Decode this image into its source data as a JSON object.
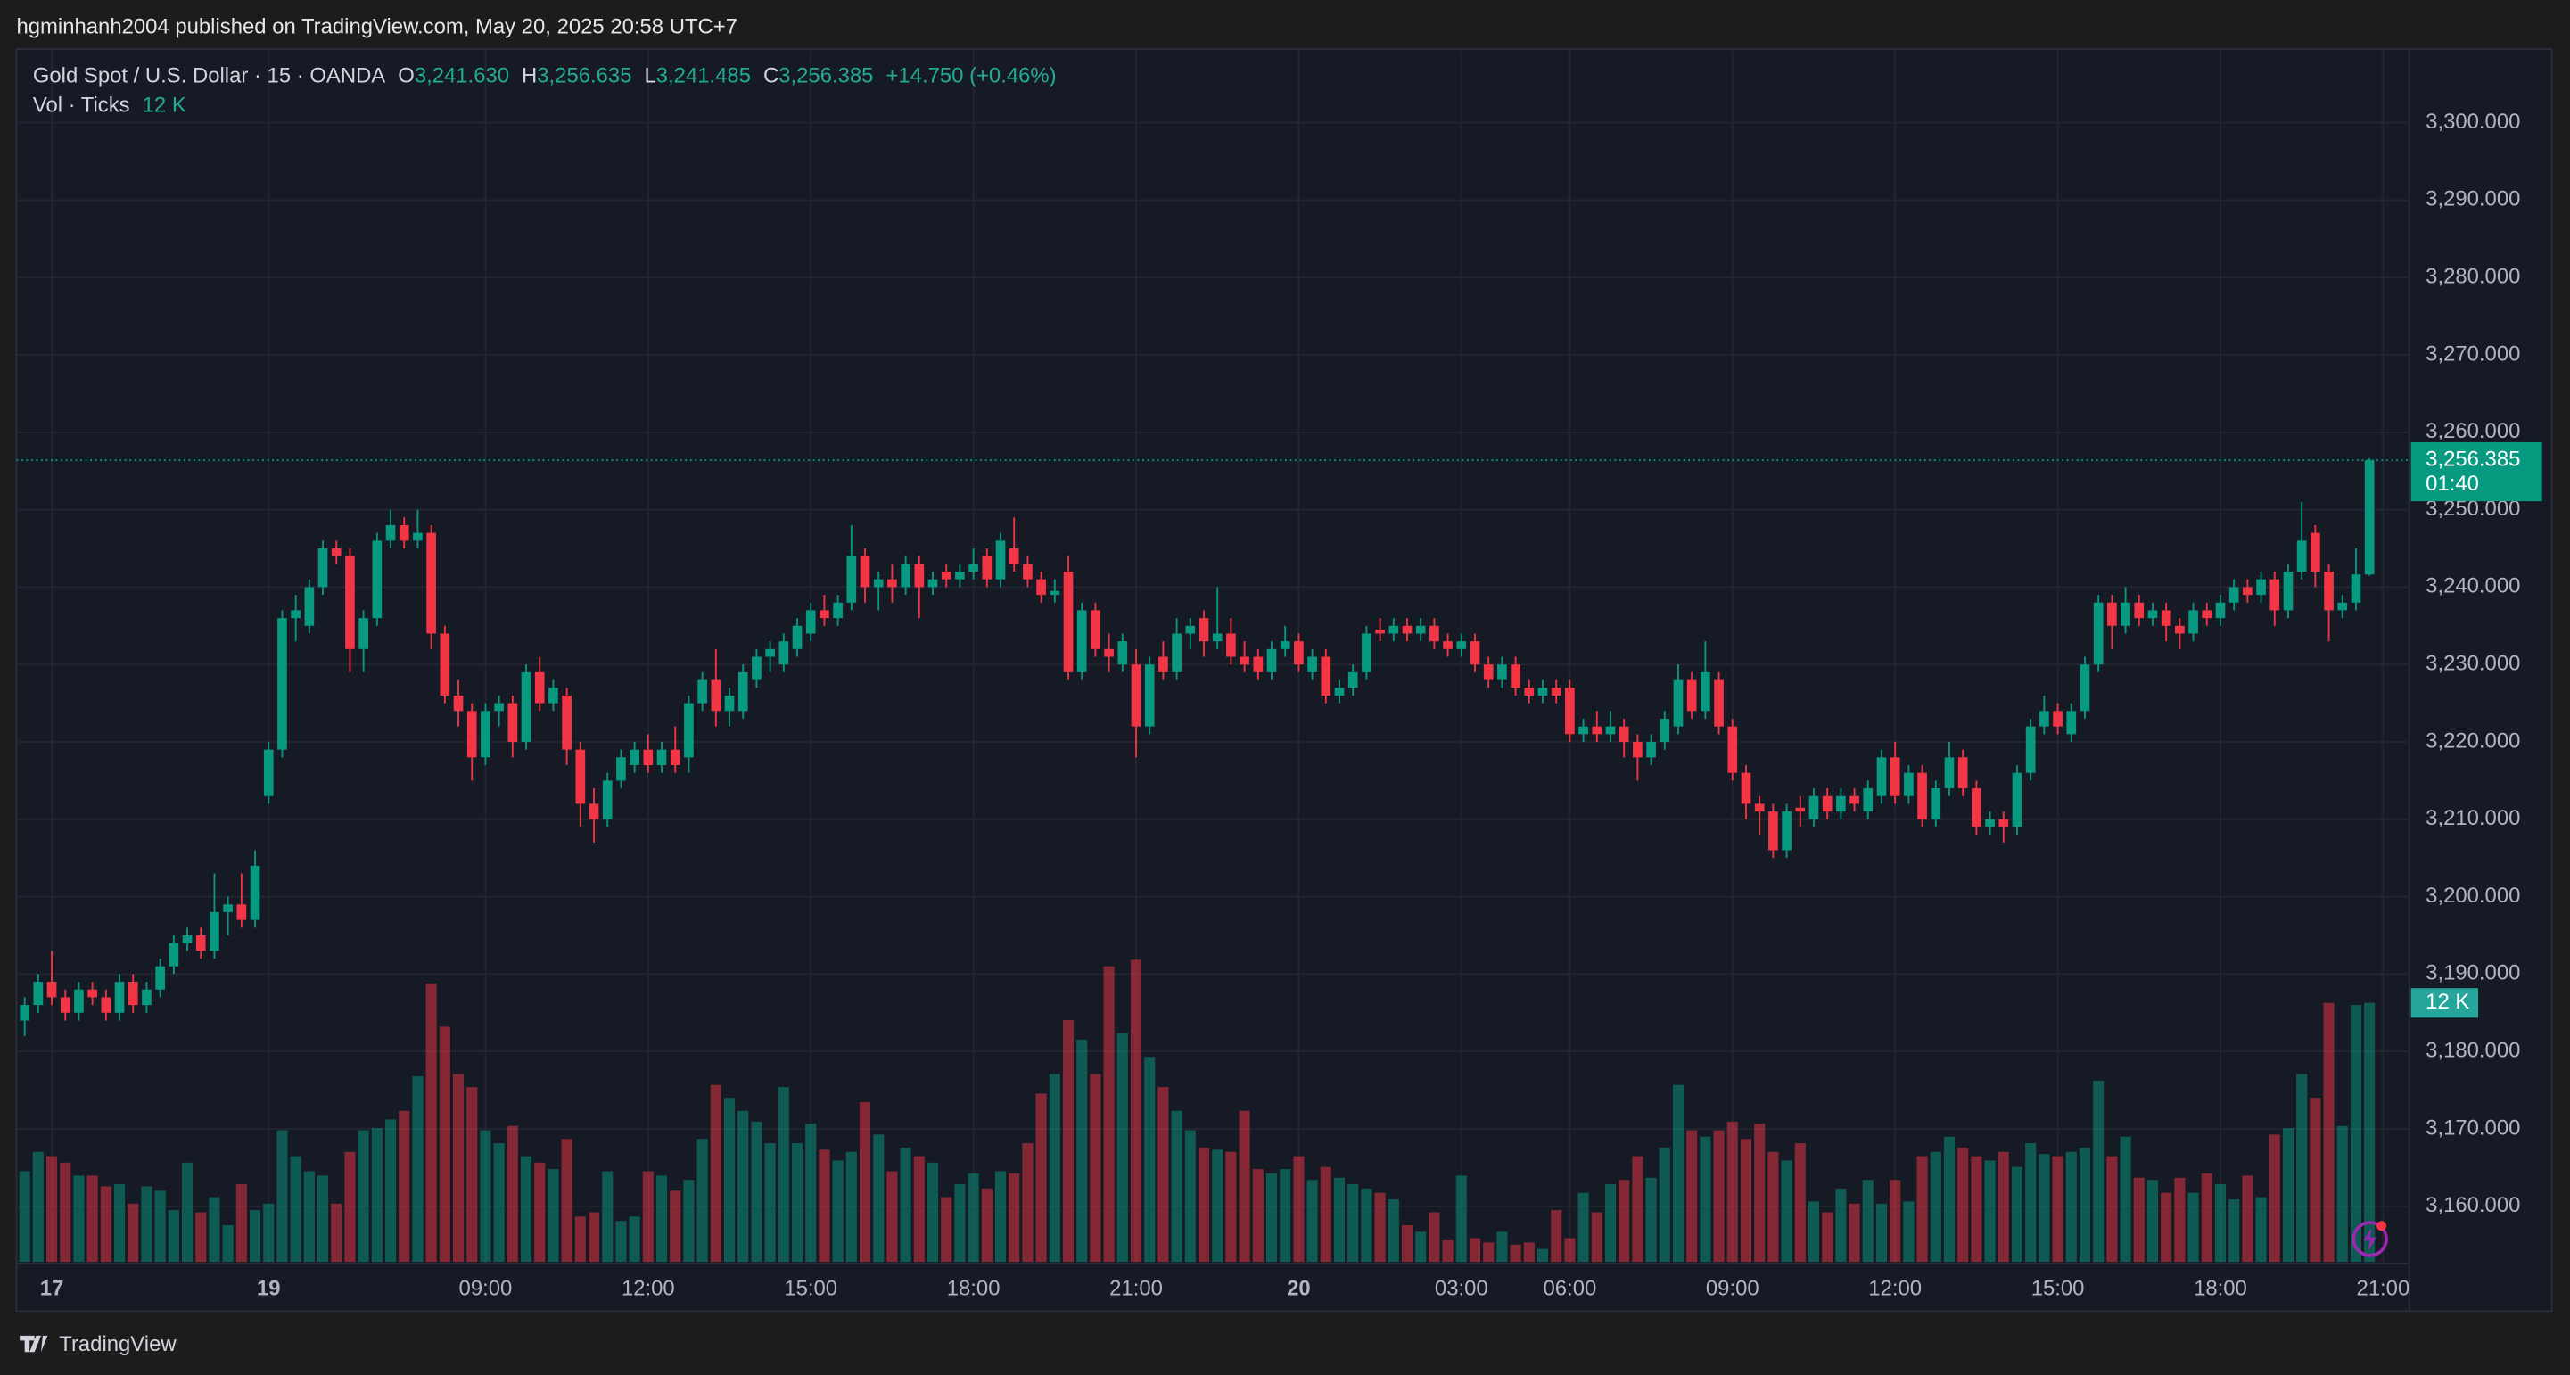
{
  "header": {
    "publisher": "hgminhanh2004 published on TradingView.com, May 20, 2025 20:58 UTC+7"
  },
  "footer": {
    "brand": "TradingView"
  },
  "chart_data": {
    "type": "candlestick",
    "title": "Gold Spot / U.S. Dollar · 15 · OANDA",
    "legend": {
      "o_key": "O",
      "o": "3,241.630",
      "h_key": "H",
      "h": "3,256.635",
      "l_key": "L",
      "l": "3,241.485",
      "c_key": "C",
      "c": "3,256.385",
      "change": "+14.750 (+0.46%)",
      "volume_title": "Vol · Ticks",
      "volume": "12 K"
    },
    "last_price_label": "3,256.385",
    "countdown": "01:40",
    "volume_tag": "12 K",
    "up_color": "#089981",
    "down_color": "#f23645",
    "ylim": [
      3152.6,
      3309.5
    ],
    "yticks": [
      {
        "value": 3160,
        "label": "3,160.000"
      },
      {
        "value": 3170,
        "label": "3,170.000"
      },
      {
        "value": 3180,
        "label": "3,180.000"
      },
      {
        "value": 3190,
        "label": "3,190.000"
      },
      {
        "value": 3200,
        "label": "3,200.000"
      },
      {
        "value": 3210,
        "label": "3,210.000"
      },
      {
        "value": 3220,
        "label": "3,220.000"
      },
      {
        "value": 3230,
        "label": "3,230.000"
      },
      {
        "value": 3240,
        "label": "3,240.000"
      },
      {
        "value": 3250,
        "label": "3,250.000"
      },
      {
        "value": 3260,
        "label": "3,260.000"
      },
      {
        "value": 3270,
        "label": "3,270.000"
      },
      {
        "value": 3280,
        "label": "3,280.000"
      },
      {
        "value": 3290,
        "label": "3,290.000"
      },
      {
        "value": 3300,
        "label": "3,300.000"
      }
    ],
    "xticks": [
      {
        "value": 2,
        "label": "17"
      },
      {
        "value": 18,
        "label": "19"
      },
      {
        "value": 34,
        "label": "09:00"
      },
      {
        "value": 46,
        "label": "12:00"
      },
      {
        "value": 58,
        "label": "15:00"
      },
      {
        "value": 70,
        "label": "18:00"
      },
      {
        "value": 82,
        "label": "21:00"
      },
      {
        "value": 94,
        "label": "20"
      },
      {
        "value": 106,
        "label": "03:00"
      },
      {
        "value": 114,
        "label": "06:00"
      },
      {
        "value": 126,
        "label": "09:00"
      },
      {
        "value": 138,
        "label": "12:00"
      },
      {
        "value": 150,
        "label": "15:00"
      },
      {
        "value": 162,
        "label": "18:00"
      },
      {
        "value": 174,
        "label": "21:00"
      }
    ],
    "grid": true,
    "ohlc": [
      [
        3184,
        3187,
        3182,
        3186
      ],
      [
        3186,
        3190,
        3185,
        3189
      ],
      [
        3189,
        3193,
        3186,
        3187
      ],
      [
        3187,
        3188,
        3184,
        3185
      ],
      [
        3185,
        3189,
        3184,
        3188
      ],
      [
        3188,
        3189,
        3186,
        3187
      ],
      [
        3187,
        3188,
        3184,
        3185
      ],
      [
        3185,
        3190,
        3184,
        3189
      ],
      [
        3189,
        3190,
        3185,
        3186
      ],
      [
        3186,
        3189,
        3185,
        3188
      ],
      [
        3188,
        3192,
        3187,
        3191
      ],
      [
        3191,
        3195,
        3190,
        3194
      ],
      [
        3194,
        3196,
        3193,
        3195
      ],
      [
        3195,
        3196,
        3192,
        3193
      ],
      [
        3193,
        3203,
        3192,
        3198
      ],
      [
        3198,
        3200,
        3195,
        3199
      ],
      [
        3199,
        3203,
        3196,
        3197
      ],
      [
        3197,
        3206,
        3196,
        3204
      ],
      [
        3213,
        3220,
        3212,
        3219
      ],
      [
        3219,
        3237,
        3218,
        3236
      ],
      [
        3236,
        3239,
        3233,
        3237
      ],
      [
        3235,
        3241,
        3234,
        3240
      ],
      [
        3240,
        3246,
        3239,
        3245
      ],
      [
        3245,
        3246,
        3243,
        3244
      ],
      [
        3244,
        3245,
        3229,
        3232
      ],
      [
        3232,
        3237,
        3229,
        3236
      ],
      [
        3236,
        3247,
        3235,
        3246
      ],
      [
        3246,
        3250,
        3245,
        3248
      ],
      [
        3248,
        3249,
        3245,
        3246
      ],
      [
        3246,
        3250,
        3245,
        3247
      ],
      [
        3247,
        3248,
        3232,
        3234
      ],
      [
        3234,
        3235,
        3225,
        3226
      ],
      [
        3226,
        3228,
        3222,
        3224
      ],
      [
        3224,
        3225,
        3215,
        3218
      ],
      [
        3218,
        3225,
        3217,
        3224
      ],
      [
        3224,
        3226,
        3222,
        3225
      ],
      [
        3225,
        3226,
        3218,
        3220
      ],
      [
        3220,
        3230,
        3219,
        3229
      ],
      [
        3229,
        3231,
        3224,
        3225
      ],
      [
        3225,
        3228,
        3224,
        3227
      ],
      [
        3226,
        3227,
        3217,
        3219
      ],
      [
        3219,
        3220,
        3209,
        3212
      ],
      [
        3212,
        3214,
        3207,
        3210
      ],
      [
        3210,
        3216,
        3209,
        3215
      ],
      [
        3215,
        3219,
        3214,
        3218
      ],
      [
        3217,
        3220,
        3216,
        3219
      ],
      [
        3219,
        3221,
        3216,
        3217
      ],
      [
        3217,
        3220,
        3216,
        3219
      ],
      [
        3219,
        3222,
        3216,
        3217
      ],
      [
        3218,
        3226,
        3216,
        3225
      ],
      [
        3225,
        3229,
        3224,
        3228
      ],
      [
        3228,
        3232,
        3222,
        3224
      ],
      [
        3224,
        3227,
        3222,
        3226
      ],
      [
        3224,
        3230,
        3223,
        3229
      ],
      [
        3228,
        3232,
        3227,
        3231
      ],
      [
        3231,
        3233,
        3229,
        3232
      ],
      [
        3230,
        3234,
        3229,
        3233
      ],
      [
        3232,
        3236,
        3231,
        3235
      ],
      [
        3234,
        3238,
        3233,
        3237
      ],
      [
        3237,
        3239,
        3235,
        3236
      ],
      [
        3236,
        3239,
        3235,
        3238
      ],
      [
        3238,
        3248,
        3237,
        3244
      ],
      [
        3244,
        3245,
        3238,
        3240
      ],
      [
        3240,
        3242,
        3237,
        3241
      ],
      [
        3241,
        3243,
        3238,
        3240
      ],
      [
        3240,
        3244,
        3239,
        3243
      ],
      [
        3243,
        3244,
        3236,
        3240
      ],
      [
        3240,
        3242,
        3239,
        3241
      ],
      [
        3242,
        3243,
        3240,
        3241
      ],
      [
        3241,
        3243,
        3240,
        3242
      ],
      [
        3242,
        3245,
        3241,
        3243
      ],
      [
        3244,
        3245,
        3240,
        3241
      ],
      [
        3241,
        3247,
        3240,
        3246
      ],
      [
        3245,
        3249,
        3242,
        3243
      ],
      [
        3243,
        3244,
        3240,
        3241
      ],
      [
        3241,
        3242,
        3238,
        3239
      ],
      [
        3239,
        3241,
        3238,
        3239.5
      ],
      [
        3242,
        3244,
        3228,
        3229
      ],
      [
        3229,
        3238,
        3228,
        3237
      ],
      [
        3237,
        3238,
        3231,
        3232
      ],
      [
        3232,
        3234,
        3229,
        3231
      ],
      [
        3230,
        3234,
        3229,
        3233
      ],
      [
        3230,
        3232,
        3218,
        3222
      ],
      [
        3222,
        3231,
        3221,
        3230
      ],
      [
        3231,
        3233,
        3228,
        3229
      ],
      [
        3229,
        3236,
        3228,
        3234
      ],
      [
        3234,
        3236,
        3232,
        3235
      ],
      [
        3236,
        3237,
        3231,
        3233
      ],
      [
        3233,
        3240,
        3232,
        3234
      ],
      [
        3234,
        3236,
        3230,
        3231
      ],
      [
        3231,
        3233,
        3229,
        3230
      ],
      [
        3231,
        3232,
        3228,
        3229
      ],
      [
        3229,
        3233,
        3228,
        3232
      ],
      [
        3232,
        3235,
        3231,
        3233
      ],
      [
        3233,
        3234,
        3229,
        3230
      ],
      [
        3229,
        3232,
        3228,
        3231
      ],
      [
        3231,
        3232,
        3225,
        3226
      ],
      [
        3226,
        3228,
        3225,
        3227
      ],
      [
        3227,
        3230,
        3226,
        3229
      ],
      [
        3229,
        3235,
        3228,
        3234
      ],
      [
        3234.5,
        3236,
        3233,
        3234
      ],
      [
        3234,
        3236,
        3233,
        3235
      ],
      [
        3235,
        3236,
        3233,
        3234
      ],
      [
        3234,
        3236,
        3233,
        3235
      ],
      [
        3235,
        3236,
        3232,
        3233
      ],
      [
        3233,
        3234,
        3231,
        3232
      ],
      [
        3232,
        3234,
        3231,
        3233
      ],
      [
        3233,
        3234,
        3229,
        3230
      ],
      [
        3230,
        3231,
        3227,
        3228
      ],
      [
        3228,
        3231,
        3227,
        3230
      ],
      [
        3230,
        3231,
        3226,
        3227
      ],
      [
        3227,
        3228,
        3225,
        3226
      ],
      [
        3226,
        3228,
        3225,
        3227
      ],
      [
        3227,
        3228,
        3225,
        3226
      ],
      [
        3227,
        3228,
        3220,
        3221
      ],
      [
        3221,
        3223,
        3220,
        3222
      ],
      [
        3222,
        3224,
        3220,
        3221
      ],
      [
        3221,
        3224,
        3220,
        3222
      ],
      [
        3222,
        3223,
        3218,
        3220
      ],
      [
        3220,
        3221,
        3215,
        3218
      ],
      [
        3218,
        3221,
        3217,
        3220
      ],
      [
        3220,
        3224,
        3219,
        3223
      ],
      [
        3222,
        3230,
        3221,
        3228
      ],
      [
        3228,
        3229,
        3223,
        3224
      ],
      [
        3224,
        3233,
        3223,
        3229
      ],
      [
        3228,
        3229,
        3221,
        3222
      ],
      [
        3222,
        3223,
        3215,
        3216
      ],
      [
        3216,
        3217,
        3210,
        3212
      ],
      [
        3212,
        3213,
        3208,
        3211
      ],
      [
        3211,
        3212,
        3205,
        3206
      ],
      [
        3206,
        3212,
        3205,
        3211
      ],
      [
        3211.5,
        3213,
        3209,
        3211
      ],
      [
        3210,
        3214,
        3209,
        3213
      ],
      [
        3213,
        3214,
        3210,
        3211
      ],
      [
        3211,
        3214,
        3210,
        3213
      ],
      [
        3213,
        3214,
        3211,
        3212
      ],
      [
        3211,
        3215,
        3210,
        3214
      ],
      [
        3213,
        3219,
        3212,
        3218
      ],
      [
        3218,
        3220,
        3212,
        3213
      ],
      [
        3213,
        3217,
        3212,
        3216
      ],
      [
        3216,
        3217,
        3209,
        3210
      ],
      [
        3210,
        3215,
        3209,
        3214
      ],
      [
        3214,
        3220,
        3213,
        3218
      ],
      [
        3218,
        3219,
        3213,
        3214
      ],
      [
        3214,
        3215,
        3208,
        3209
      ],
      [
        3209,
        3211,
        3208,
        3210
      ],
      [
        3210,
        3211,
        3207,
        3209
      ],
      [
        3209,
        3217,
        3208,
        3216
      ],
      [
        3216,
        3223,
        3215,
        3222
      ],
      [
        3222,
        3226,
        3221,
        3224
      ],
      [
        3224,
        3225,
        3221,
        3222
      ],
      [
        3221,
        3225,
        3220,
        3224
      ],
      [
        3224,
        3231,
        3223,
        3230
      ],
      [
        3230,
        3239,
        3229,
        3238
      ],
      [
        3238,
        3239,
        3232,
        3235
      ],
      [
        3235,
        3240,
        3234,
        3238
      ],
      [
        3238,
        3239,
        3235,
        3236
      ],
      [
        3236,
        3238,
        3235,
        3237
      ],
      [
        3237,
        3238,
        3233,
        3235
      ],
      [
        3235,
        3236,
        3232,
        3234
      ],
      [
        3234,
        3238,
        3233,
        3237
      ],
      [
        3237,
        3238,
        3235,
        3236
      ],
      [
        3236,
        3239,
        3235,
        3238
      ],
      [
        3238,
        3241,
        3237,
        3240
      ],
      [
        3240,
        3241,
        3238,
        3239
      ],
      [
        3239,
        3242,
        3238,
        3241
      ],
      [
        3241,
        3242,
        3235,
        3237
      ],
      [
        3237,
        3243,
        3236,
        3242
      ],
      [
        3242,
        3251,
        3241,
        3246
      ],
      [
        3247,
        3248,
        3240,
        3242
      ],
      [
        3242,
        3243,
        3233,
        3237
      ],
      [
        3237,
        3239,
        3236,
        3238
      ],
      [
        3238,
        3245,
        3237,
        3241.63
      ],
      [
        3241.63,
        3256.635,
        3241.485,
        3256.385
      ]
    ],
    "volume": [
      4200,
      5100,
      4900,
      4600,
      4000,
      4000,
      3500,
      3600,
      2700,
      3500,
      3300,
      2400,
      4600,
      2300,
      3000,
      1700,
      3600,
      2400,
      2700,
      6100,
      4900,
      4200,
      4000,
      2700,
      5100,
      6100,
      6200,
      6600,
      7000,
      8600,
      12900,
      10900,
      8700,
      8100,
      6100,
      5500,
      6300,
      4900,
      4600,
      4300,
      5700,
      2100,
      2300,
      4200,
      1900,
      2100,
      4200,
      4000,
      3300,
      3800,
      5700,
      8200,
      7600,
      7000,
      6500,
      5500,
      8100,
      5500,
      6400,
      5200,
      4700,
      5100,
      7400,
      5900,
      4200,
      5300,
      4900,
      4600,
      3000,
      3600,
      4100,
      3400,
      4200,
      4100,
      5500,
      7800,
      8700,
      11200,
      10300,
      8700,
      13700,
      10600,
      14000,
      9500,
      8100,
      7000,
      6100,
      5300,
      5200,
      5100,
      7000,
      4300,
      4100,
      4300,
      4900,
      3800,
      4400,
      3900,
      3600,
      3400,
      3200,
      2900,
      1700,
      1400,
      2300,
      1000,
      4000,
      1100,
      900,
      1400,
      800,
      900,
      600,
      2400,
      1100,
      3200,
      2300,
      3600,
      3800,
      4900,
      3900,
      5300,
      8200,
      6100,
      5800,
      6100,
      6500,
      5700,
      6400,
      5100,
      4700,
      5500,
      2800,
      2300,
      3400,
      2700,
      3800,
      2700,
      3800,
      2800,
      4900,
      5100,
      5800,
      5300,
      4900,
      4700,
      5100,
      4400,
      5500,
      5000,
      4900,
      5100,
      5300,
      8400,
      4900,
      5800,
      3900,
      3800,
      3200,
      3900,
      3200,
      4100,
      3600,
      2900,
      4000,
      3000,
      5900,
      6200,
      8700,
      7600,
      12000,
      6300,
      11900,
      12000
    ]
  }
}
